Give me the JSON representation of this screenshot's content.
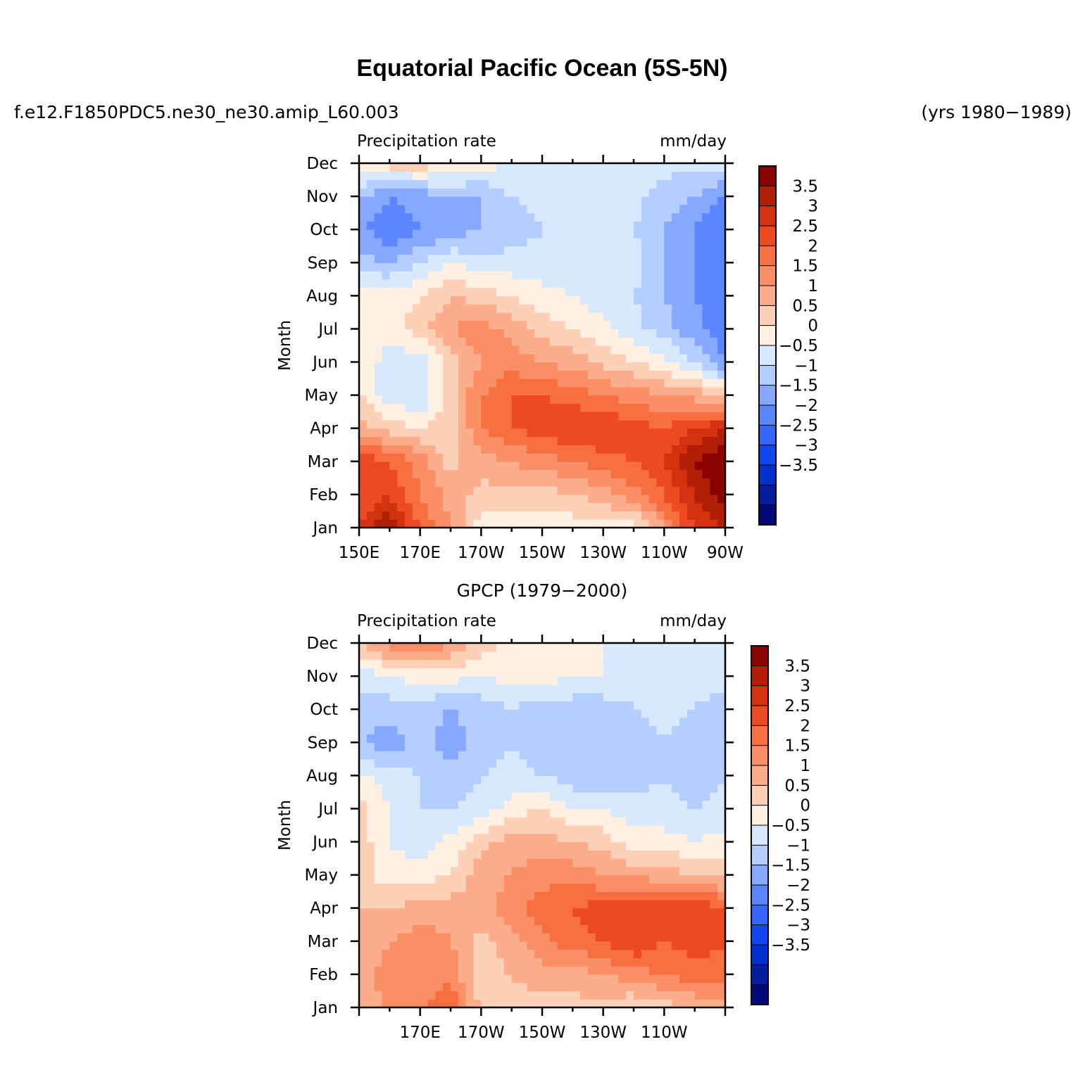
{
  "figure": {
    "title": "Equatorial Pacific Ocean (5S-5N)",
    "case_name": "f.e12.F1850PDC5.ne30_ne30.amip_L60.003",
    "years": "(yrs 1980−1989)"
  },
  "colorbar": {
    "levels": [
      "3.5",
      "3",
      "2.5",
      "2",
      "1.5",
      "1",
      "0.5",
      "0",
      "−0.5",
      "−1",
      "−1.5",
      "−2",
      "−2.5",
      "−3",
      "−3.5"
    ],
    "colors": [
      "#8b0000",
      "#b11f06",
      "#d2320f",
      "#ee4a22",
      "#f76f41",
      "#fa8e64",
      "#fcad8c",
      "#fdd0b8",
      "#fff0e2",
      "#d6e9ff",
      "#b3ceff",
      "#86a8ff",
      "#5c86ff",
      "#3466ff",
      "#1247f0",
      "#0030cc",
      "#001e9e",
      "#000a78"
    ]
  },
  "chart_data": [
    {
      "type": "heatmap",
      "title": "",
      "left_label": "Precipitation rate",
      "right_label": "mm/day",
      "xlabel": "",
      "ylabel": "Month",
      "x": [
        150,
        160,
        170,
        180,
        190,
        200,
        210,
        220,
        230,
        240,
        250,
        260,
        270
      ],
      "x_tick_labels": [
        "150E",
        "170E",
        "170W",
        "150W",
        "130W",
        "110W",
        "90W"
      ],
      "y": [
        "Jan",
        "Feb",
        "Mar",
        "Apr",
        "May",
        "Jun",
        "Jul",
        "Aug",
        "Sep",
        "Oct",
        "Nov",
        "Dec"
      ],
      "units": "mm/day",
      "values": [
        [
          2.5,
          3.5,
          2.0,
          1.0,
          -0.3,
          -0.3,
          -0.3,
          -0.3,
          -0.3,
          -0.3,
          1.0,
          2.5,
          3.0
        ],
        [
          2.0,
          2.5,
          1.5,
          0.8,
          0.3,
          0.3,
          0.3,
          0.5,
          0.8,
          1.3,
          2.0,
          3.0,
          3.8
        ],
        [
          2.5,
          2.0,
          1.3,
          0.3,
          0.8,
          1.0,
          1.3,
          1.5,
          1.8,
          2.0,
          2.5,
          3.5,
          4.0
        ],
        [
          0.8,
          0.3,
          0.0,
          0.3,
          1.5,
          2.0,
          2.3,
          2.5,
          2.5,
          2.3,
          2.0,
          2.5,
          3.0
        ],
        [
          0.0,
          -0.8,
          -1.0,
          0.3,
          1.5,
          2.0,
          2.0,
          1.8,
          1.5,
          1.3,
          1.0,
          0.8,
          0.3
        ],
        [
          0.0,
          -0.8,
          -0.8,
          0.3,
          1.0,
          1.3,
          1.0,
          0.8,
          0.3,
          0.0,
          -0.3,
          -1.0,
          -2.0
        ],
        [
          0.0,
          -0.3,
          0.3,
          1.0,
          1.3,
          0.8,
          0.3,
          0.0,
          -0.3,
          -0.8,
          -1.3,
          -1.8,
          -2.3
        ],
        [
          0.0,
          -0.3,
          0.0,
          0.5,
          0.3,
          0.0,
          -0.3,
          -0.5,
          -0.8,
          -1.0,
          -1.5,
          -2.0,
          -2.3
        ],
        [
          -1.3,
          -1.5,
          -1.0,
          -0.5,
          -0.8,
          -0.8,
          -0.8,
          -0.8,
          -0.8,
          -0.8,
          -1.5,
          -2.0,
          -2.3
        ],
        [
          -1.8,
          -2.5,
          -2.0,
          -1.8,
          -1.5,
          -1.3,
          -1.0,
          -0.8,
          -0.8,
          -1.0,
          -1.5,
          -2.0,
          -2.5
        ],
        [
          -1.5,
          -2.0,
          -1.8,
          -1.5,
          -1.5,
          -1.0,
          -0.8,
          -0.5,
          -0.5,
          -0.8,
          -1.3,
          -1.5,
          -2.0
        ],
        [
          0.0,
          0.3,
          0.3,
          0.0,
          -0.3,
          -0.5,
          -0.8,
          -0.8,
          -0.8,
          -0.8,
          -0.8,
          -0.8,
          -0.8
        ]
      ],
      "zlim": [
        -3.5,
        3.5
      ]
    },
    {
      "type": "heatmap",
      "title": "GPCP (1979−2000)",
      "left_label": "Precipitation rate",
      "right_label": "mm/day",
      "xlabel": "",
      "ylabel": "Month",
      "x": [
        150,
        160,
        170,
        180,
        190,
        200,
        210,
        220,
        230,
        240,
        250,
        260,
        270
      ],
      "x_tick_labels": [
        "170E",
        "170W",
        "150W",
        "130W",
        "110W"
      ],
      "y": [
        "Jan",
        "Feb",
        "Mar",
        "Apr",
        "May",
        "Jun",
        "Jul",
        "Aug",
        "Sep",
        "Oct",
        "Nov",
        "Dec"
      ],
      "units": "mm/day",
      "values": [
        [
          0.8,
          1.0,
          1.3,
          2.0,
          0.3,
          0.3,
          0.3,
          0.3,
          0.3,
          0.0,
          0.3,
          0.5,
          0.8
        ],
        [
          0.8,
          1.3,
          1.3,
          1.3,
          0.3,
          0.5,
          0.8,
          0.8,
          1.0,
          1.3,
          1.5,
          1.8,
          1.8
        ],
        [
          0.5,
          1.0,
          1.3,
          1.0,
          0.3,
          0.8,
          1.3,
          1.8,
          2.0,
          2.5,
          2.0,
          2.3,
          2.0
        ],
        [
          0.5,
          0.5,
          0.8,
          0.8,
          0.8,
          1.3,
          1.8,
          2.0,
          2.3,
          2.5,
          2.3,
          2.5,
          2.0
        ],
        [
          0.3,
          -0.3,
          -0.3,
          0.0,
          0.8,
          1.0,
          1.3,
          1.3,
          1.0,
          0.8,
          0.8,
          0.5,
          0.3
        ],
        [
          0.3,
          -0.5,
          -0.8,
          -0.3,
          0.3,
          0.8,
          0.8,
          0.5,
          0.3,
          -0.3,
          -0.3,
          -0.5,
          -0.3
        ],
        [
          0.3,
          -0.5,
          -1.0,
          -1.0,
          -0.8,
          -0.3,
          0.0,
          -0.5,
          -0.5,
          -0.8,
          -0.8,
          -1.0,
          -0.8
        ],
        [
          -0.3,
          -0.8,
          -1.0,
          -1.3,
          -1.0,
          -0.8,
          -1.0,
          -1.3,
          -1.3,
          -1.3,
          -1.0,
          -1.3,
          -1.0
        ],
        [
          -1.5,
          -1.8,
          -1.3,
          -1.8,
          -1.3,
          -1.0,
          -1.3,
          -1.3,
          -1.3,
          -1.3,
          -1.0,
          -1.3,
          -1.3
        ],
        [
          -1.0,
          -1.3,
          -1.3,
          -1.5,
          -1.3,
          -1.0,
          -1.3,
          -1.3,
          -1.3,
          -1.0,
          -0.8,
          -1.0,
          -1.3
        ],
        [
          -1.0,
          -0.5,
          -0.3,
          -0.3,
          -0.5,
          -0.3,
          -0.3,
          -0.5,
          -0.5,
          -0.8,
          -0.8,
          -0.8,
          -0.8
        ],
        [
          0.5,
          1.3,
          1.8,
          1.0,
          0.3,
          -0.3,
          -0.3,
          -0.3,
          -0.5,
          -0.8,
          -0.8,
          -0.8,
          -0.8
        ]
      ],
      "zlim": [
        -3.5,
        3.5
      ]
    }
  ]
}
